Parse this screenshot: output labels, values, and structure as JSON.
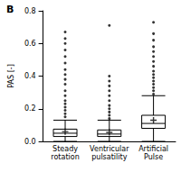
{
  "chart_data": {
    "type": "boxplot",
    "title": "B",
    "y_label": "PAS [-]",
    "categories": [
      "Steady rotation",
      "Ventricular pulsatility",
      "Artificial Pulse"
    ],
    "boxes": [
      [
        0.0,
        0.03,
        0.05,
        0.075,
        0.13
      ],
      [
        0.0,
        0.03,
        0.045,
        0.07,
        0.13
      ],
      [
        0.0,
        0.08,
        0.11,
        0.16,
        0.28
      ]
    ],
    "means": [
      0.06,
      0.055,
      0.13
    ],
    "outliers": [
      [
        0.15,
        0.17,
        0.19,
        0.21,
        0.23,
        0.25,
        0.28,
        0.31,
        0.35,
        0.38,
        0.41,
        0.44,
        0.48,
        0.52,
        0.56,
        0.6,
        0.63,
        0.67
      ],
      [
        0.14,
        0.16,
        0.18,
        0.2,
        0.22,
        0.25,
        0.28,
        0.31,
        0.34,
        0.37,
        0.4,
        0.71
      ],
      [
        0.29,
        0.31,
        0.33,
        0.35,
        0.37,
        0.39,
        0.41,
        0.43,
        0.46,
        0.49,
        0.52,
        0.55,
        0.58,
        0.62,
        0.66,
        0.73
      ]
    ],
    "color": "#000000",
    "ylim": [
      0,
      0.8
    ],
    "yticks": [
      {
        "value": 0,
        "label": "0.0"
      },
      0.2,
      0.4,
      0.6,
      0.8
    ],
    "grid": false
  }
}
